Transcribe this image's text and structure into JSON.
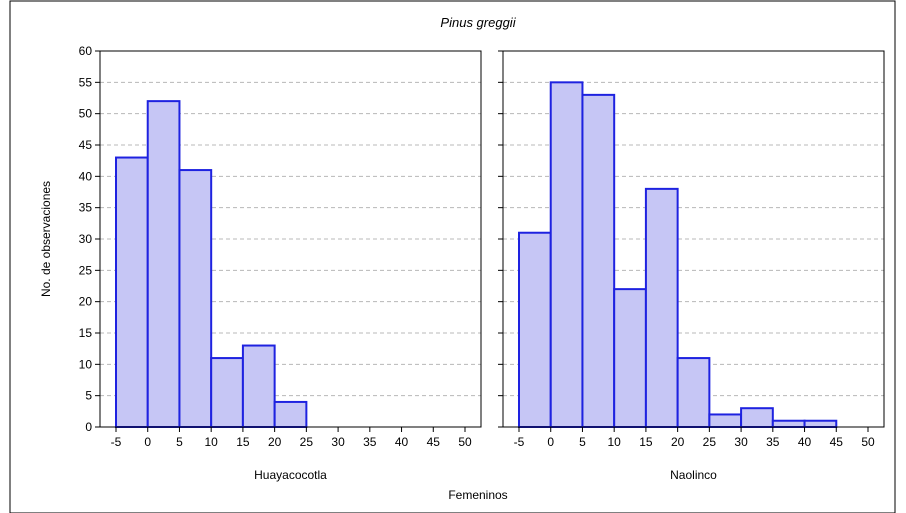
{
  "chart_data": {
    "type": "bar",
    "title": "Pinus greggii",
    "ylabel": "No. de observaciones",
    "xlabel": "Femeninos",
    "ylim": [
      0,
      60
    ],
    "yticks": [
      0,
      5,
      10,
      15,
      20,
      25,
      30,
      35,
      40,
      45,
      50,
      55,
      60
    ],
    "xlim": [
      -5,
      50
    ],
    "xticks": [
      -5,
      0,
      5,
      10,
      15,
      20,
      25,
      30,
      35,
      40,
      45,
      50
    ],
    "grid": "horizontal dashed",
    "bar_color": "#c6c6f5",
    "bar_edge_color": "#1e22e0",
    "panels": [
      {
        "label": "Huayacocotla",
        "bins": [
          {
            "from": -5,
            "to": 0,
            "value": 43
          },
          {
            "from": 0,
            "to": 5,
            "value": 52
          },
          {
            "from": 5,
            "to": 10,
            "value": 41
          },
          {
            "from": 10,
            "to": 15,
            "value": 11
          },
          {
            "from": 15,
            "to": 20,
            "value": 13
          },
          {
            "from": 20,
            "to": 25,
            "value": 4
          }
        ]
      },
      {
        "label": "Naolinco",
        "bins": [
          {
            "from": -5,
            "to": 0,
            "value": 31
          },
          {
            "from": 0,
            "to": 5,
            "value": 55
          },
          {
            "from": 5,
            "to": 10,
            "value": 53
          },
          {
            "from": 10,
            "to": 15,
            "value": 22
          },
          {
            "from": 15,
            "to": 20,
            "value": 38
          },
          {
            "from": 20,
            "to": 25,
            "value": 11
          },
          {
            "from": 25,
            "to": 30,
            "value": 2
          },
          {
            "from": 30,
            "to": 35,
            "value": 3
          },
          {
            "from": 35,
            "to": 40,
            "value": 1
          },
          {
            "from": 40,
            "to": 45,
            "value": 1
          }
        ]
      }
    ]
  }
}
